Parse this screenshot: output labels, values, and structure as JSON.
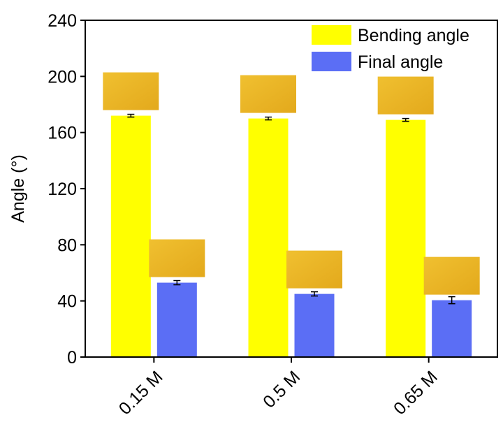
{
  "chart_data": {
    "type": "bar",
    "y_label": "Angle (°)",
    "categories": [
      "0.15 M",
      "0.5 M",
      "0.65 M"
    ],
    "series": [
      {
        "name": "Bending angle",
        "color": "#ffff00",
        "values": [
          172,
          170,
          169
        ],
        "errors": [
          1,
          1,
          1
        ]
      },
      {
        "name": "Final angle",
        "color": "#5b6ef5",
        "values": [
          53,
          45,
          40.5
        ],
        "errors": [
          1.5,
          1.5,
          2.5
        ]
      }
    ],
    "ylim": [
      0,
      240
    ],
    "yticks": [
      0,
      40,
      80,
      120,
      160,
      200,
      240
    ]
  }
}
